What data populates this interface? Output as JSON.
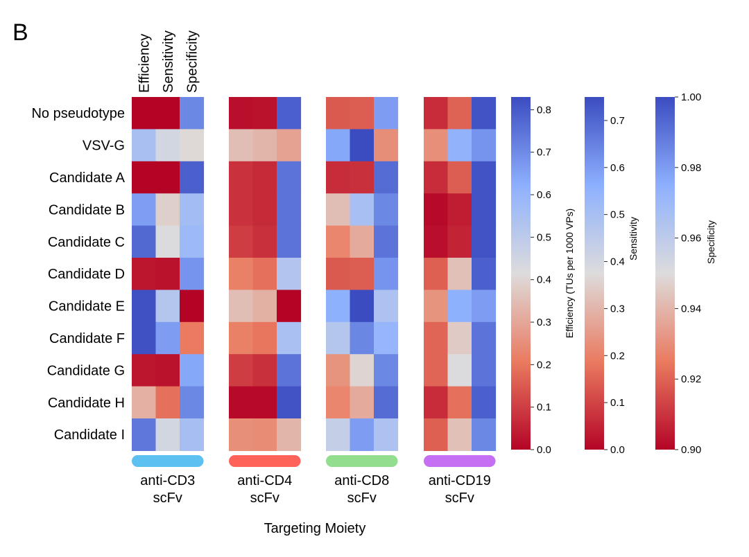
{
  "panel_label": "B",
  "chart_data": {
    "type": "heatmap",
    "rows": [
      "No pseudotype",
      "VSV-G",
      "Candidate A",
      "Candidate B",
      "Candidate C",
      "Candidate D",
      "Candidate E",
      "Candidate F",
      "Candidate G",
      "Candidate H",
      "Candidate I"
    ],
    "metrics": [
      "Efficiency",
      "Sensitivity",
      "Specificity"
    ],
    "groups": [
      {
        "line1": "anti-CD3",
        "line2": "scFv",
        "color": "#5cc0f0",
        "values": [
          [
            0.0,
            0.0,
            0.985
          ],
          [
            0.55,
            0.4,
            0.949
          ],
          [
            0.0,
            0.0,
            0.995
          ],
          [
            0.66,
            0.35,
            0.968
          ],
          [
            0.77,
            0.38,
            0.97
          ],
          [
            0.03,
            0.02,
            0.982
          ],
          [
            0.82,
            0.47,
            0.9
          ],
          [
            0.82,
            0.6,
            0.925
          ],
          [
            0.03,
            0.02,
            0.977
          ],
          [
            0.32,
            0.17,
            0.985
          ],
          [
            0.74,
            0.4,
            0.967
          ]
        ]
      },
      {
        "line1": "anti-CD4",
        "line2": "scFv",
        "color": "#ff6259",
        "values": [
          [
            0.02,
            0.02,
            0.995
          ],
          [
            0.35,
            0.3,
            0.935
          ],
          [
            0.08,
            0.06,
            0.99
          ],
          [
            0.08,
            0.06,
            0.99
          ],
          [
            0.1,
            0.07,
            0.99
          ],
          [
            0.22,
            0.17,
            0.963
          ],
          [
            0.35,
            0.29,
            0.9
          ],
          [
            0.22,
            0.18,
            0.966
          ],
          [
            0.1,
            0.07,
            0.99
          ],
          [
            0.01,
            0.01,
            0.998
          ],
          [
            0.25,
            0.22,
            0.94
          ]
        ]
      },
      {
        "line1": "anti-CD8",
        "line2": "scFv",
        "color": "#93dd8e",
        "values": [
          [
            0.15,
            0.14,
            0.98
          ],
          [
            0.64,
            0.75,
            0.93
          ],
          [
            0.07,
            0.07,
            0.992
          ],
          [
            0.35,
            0.5,
            0.985
          ],
          [
            0.23,
            0.28,
            0.99
          ],
          [
            0.15,
            0.14,
            0.982
          ],
          [
            0.62,
            0.75,
            0.965
          ],
          [
            0.52,
            0.64,
            0.972
          ],
          [
            0.26,
            0.36,
            0.985
          ],
          [
            0.23,
            0.28,
            0.992
          ],
          [
            0.48,
            0.6,
            0.965
          ]
        ]
      },
      {
        "line1": "anti-CD19",
        "line2": "scFv",
        "color": "#c56ff2",
        "values": [
          [
            0.07,
            0.15,
            0.998
          ],
          [
            0.25,
            0.55,
            0.982
          ],
          [
            0.07,
            0.14,
            0.998
          ],
          [
            0.01,
            0.04,
            0.998
          ],
          [
            0.02,
            0.05,
            0.998
          ],
          [
            0.16,
            0.32,
            0.995
          ],
          [
            0.26,
            0.56,
            0.98
          ],
          [
            0.17,
            0.34,
            0.99
          ],
          [
            0.17,
            0.38,
            0.99
          ],
          [
            0.07,
            0.17,
            0.995
          ],
          [
            0.16,
            0.32,
            0.985
          ]
        ]
      }
    ],
    "xlabel": "Targeting Moiety",
    "colorbars": [
      {
        "label": "Efficiency (TUs per 1000 VPs)",
        "range": [
          0,
          0.83
        ],
        "ticks": [
          "0.0",
          "0.1",
          "0.2",
          "0.3",
          "0.4",
          "0.5",
          "0.6",
          "0.7",
          "0.8"
        ],
        "tick_values": [
          0,
          0.1,
          0.2,
          0.3,
          0.4,
          0.5,
          0.6,
          0.7,
          0.8
        ]
      },
      {
        "label": "Sensitivity",
        "range": [
          0,
          0.75
        ],
        "ticks": [
          "0.0",
          "0.1",
          "0.2",
          "0.3",
          "0.4",
          "0.5",
          "0.6",
          "0.7"
        ],
        "tick_values": [
          0,
          0.1,
          0.2,
          0.3,
          0.4,
          0.5,
          0.6,
          0.7
        ]
      },
      {
        "label": "Specificity",
        "range": [
          0.9,
          1.0
        ],
        "ticks": [
          "0.90",
          "0.92",
          "0.94",
          "0.96",
          "0.98",
          "1.00"
        ],
        "tick_values": [
          0.9,
          0.92,
          0.94,
          0.96,
          0.98,
          1.0
        ]
      }
    ],
    "colormap": "coolwarm (reversed: red = low, blue = high)"
  }
}
